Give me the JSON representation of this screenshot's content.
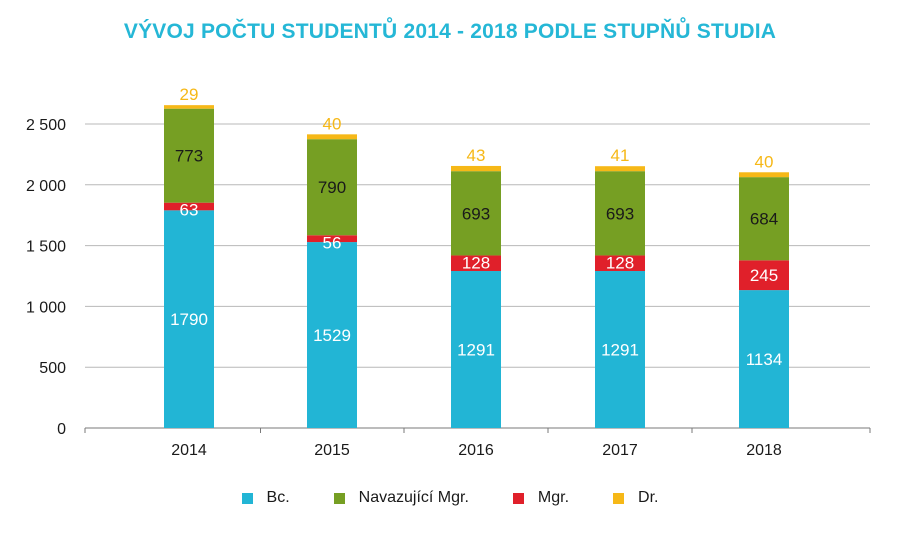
{
  "chart_data": {
    "type": "bar",
    "stacked": true,
    "title": "VÝVOJ POČTU STUDENTŮ 2014 - 2018 PODLE STUPŇŮ STUDIA",
    "categories": [
      "2014",
      "2015",
      "2016",
      "2017",
      "2018"
    ],
    "series": [
      {
        "name": "Bc.",
        "color": "#22b5d5",
        "label_color": "#ffffff",
        "values": [
          1790,
          1529,
          1291,
          1291,
          1134
        ]
      },
      {
        "name": "Mgr.",
        "color": "#e0202a",
        "label_color": "#ffffff",
        "values": [
          63,
          56,
          128,
          128,
          245
        ]
      },
      {
        "name": "Navazující Mgr.",
        "color": "#769f23",
        "label_color": "#1a1a1a",
        "values": [
          773,
          790,
          693,
          693,
          684
        ]
      },
      {
        "name": "Dr.",
        "color": "#f6b817",
        "label_color": "#f6b817",
        "values": [
          29,
          40,
          43,
          41,
          40
        ]
      }
    ],
    "legend_order": [
      "Bc.",
      "Navazující Mgr.",
      "Mgr.",
      "Dr."
    ],
    "ylim": [
      0,
      2500
    ],
    "yticks": [
      0,
      500,
      1000,
      1500,
      2000,
      2500
    ],
    "ytick_labels": [
      "0",
      "500",
      "1 000",
      "1 500",
      "2 000",
      "2 500"
    ],
    "grid": true,
    "legend_position": "bottom",
    "xlabel": "",
    "ylabel": ""
  }
}
